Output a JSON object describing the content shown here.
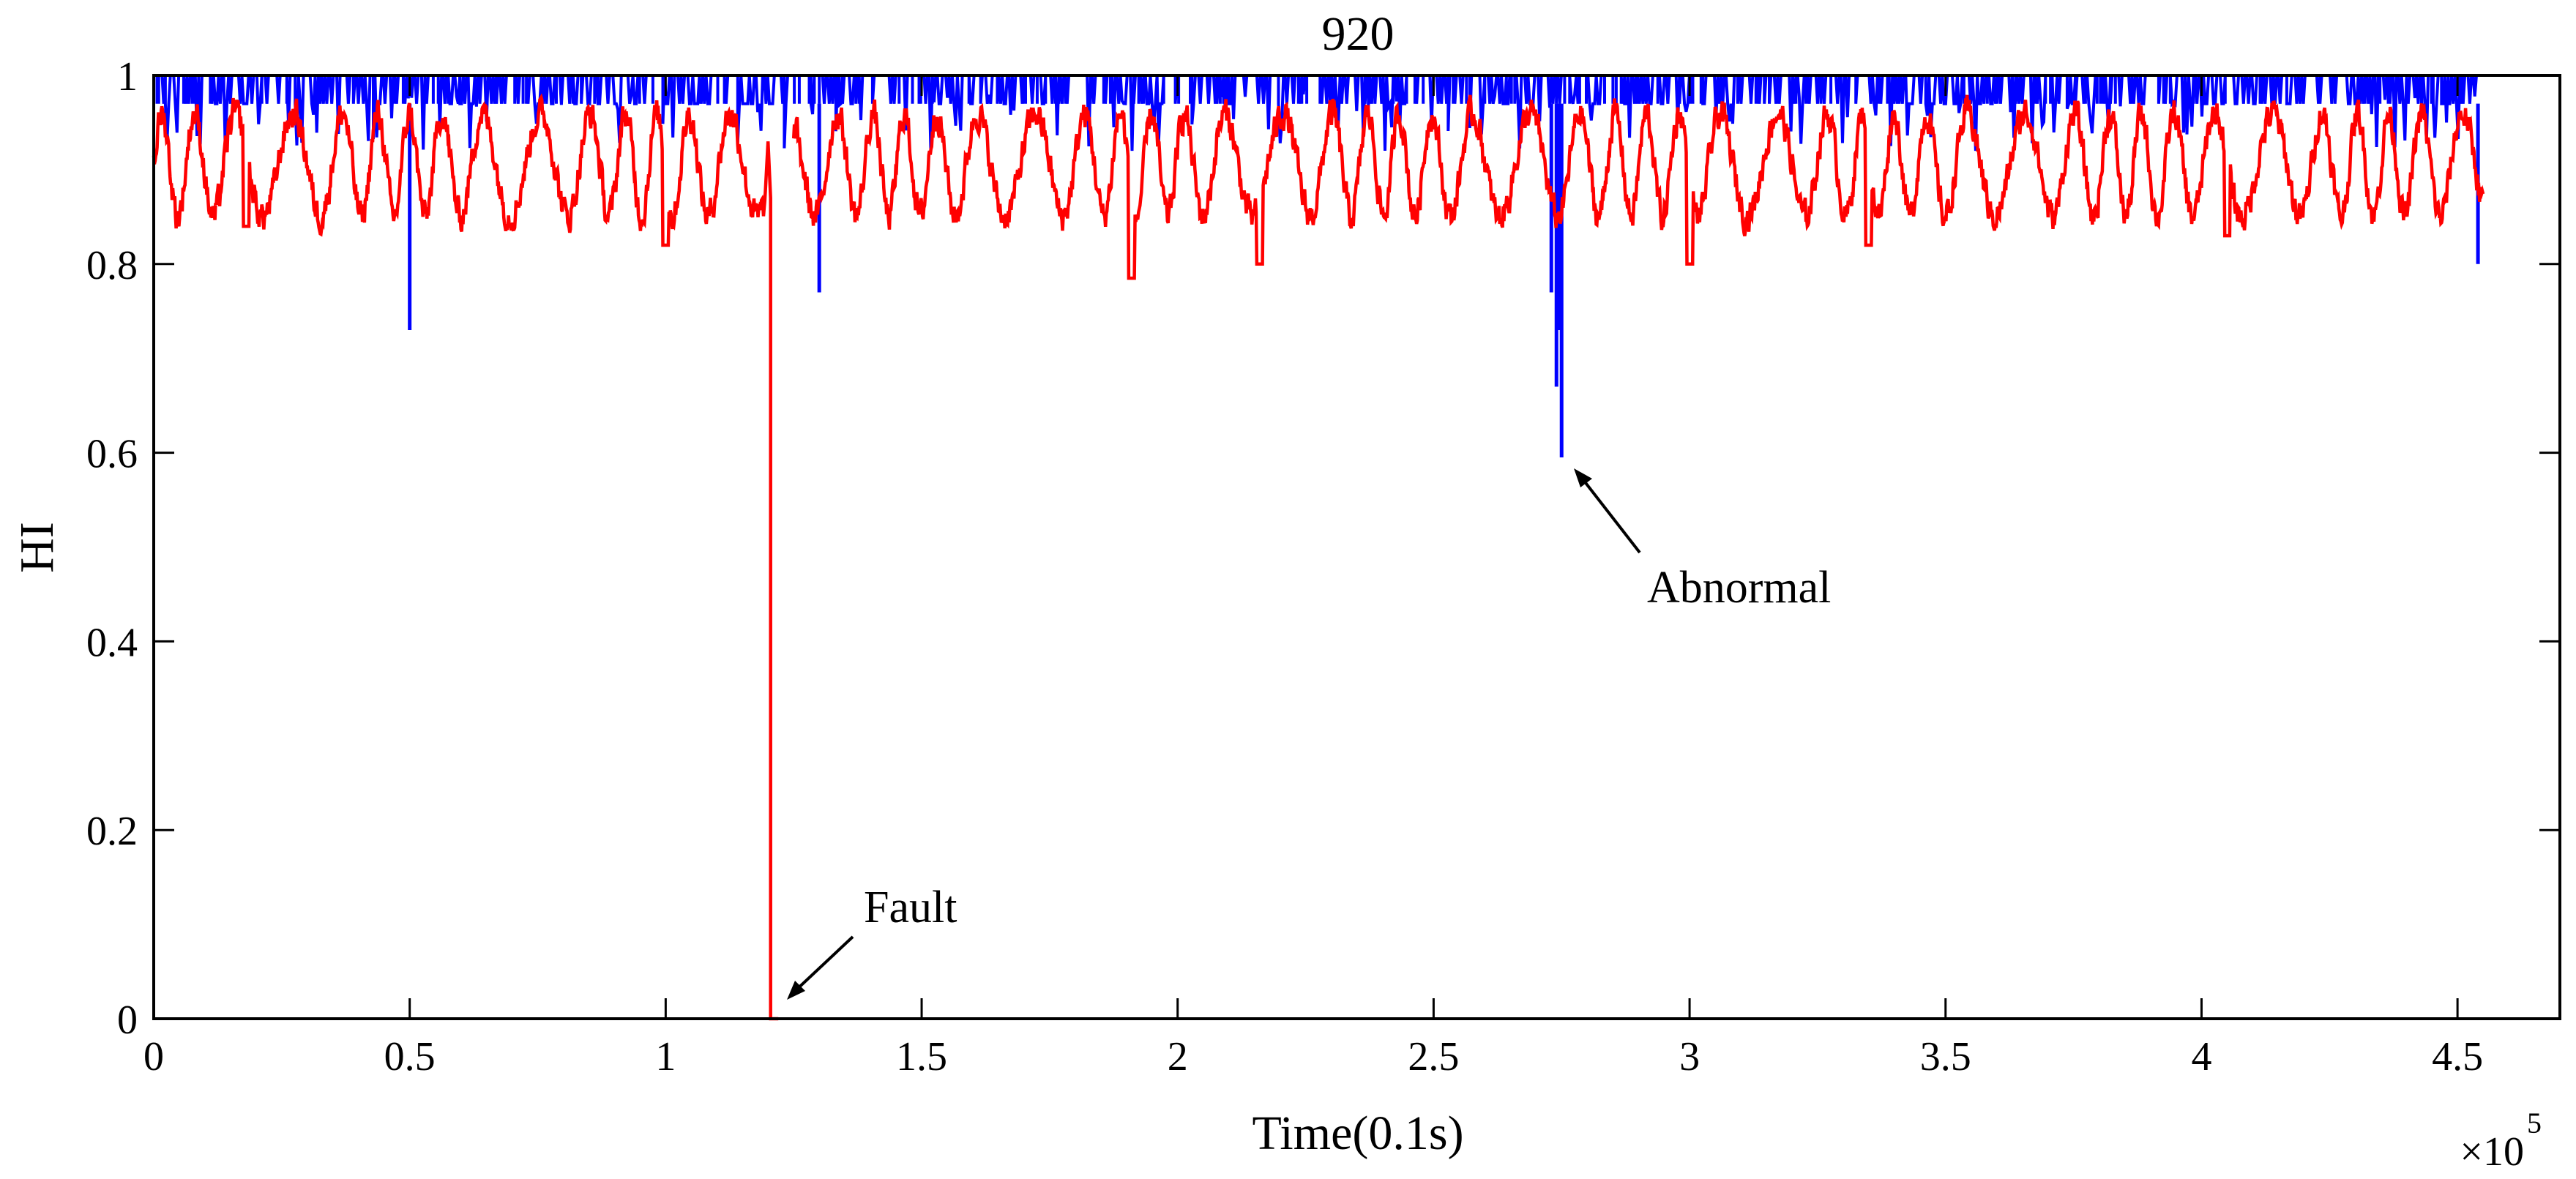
{
  "chart_data": {
    "type": "line",
    "title": "920",
    "xlabel": "Time(0.1s)",
    "ylabel": "HI",
    "x_multiplier_label": "×10",
    "x_multiplier_exponent": "5",
    "xlim": [
      0,
      4.7
    ],
    "ylim": [
      0,
      1
    ],
    "x_ticks": [
      0,
      0.5,
      1,
      1.5,
      2,
      2.5,
      3,
      3.5,
      4,
      4.5
    ],
    "x_tick_labels": [
      "0",
      "0.5",
      "1",
      "1.5",
      "2",
      "2.5",
      "3",
      "3.5",
      "4",
      "4.5"
    ],
    "y_ticks": [
      0,
      0.2,
      0.4,
      0.6,
      0.8,
      1
    ],
    "y_tick_labels": [
      "0",
      "0.2",
      "0.4",
      "0.6",
      "0.8",
      "1"
    ],
    "grid": false,
    "series": [
      {
        "name": "blue-series",
        "color": "#0000ff",
        "x_range": [
          0,
          4.55
        ],
        "baseline": 0.97,
        "spikes": [
          {
            "x": 0.5,
            "y": 0.73
          },
          {
            "x": 1.3,
            "y": 0.77
          },
          {
            "x": 2.73,
            "y": 0.77
          },
          {
            "x": 2.74,
            "y": 0.67
          },
          {
            "x": 2.745,
            "y": 0.73
          },
          {
            "x": 2.75,
            "y": 0.595
          },
          {
            "x": 4.54,
            "y": 0.8
          }
        ]
      },
      {
        "name": "red-series",
        "color": "#ff0000",
        "x_range": [
          0,
          4.55
        ],
        "typical_range": [
          0.82,
          0.98
        ],
        "fault_drop_x": 1.2,
        "fault_zero_until_x": 1.22,
        "lows": [
          {
            "x": 0.18,
            "y": 0.84
          },
          {
            "x": 1.0,
            "y": 0.82
          },
          {
            "x": 1.91,
            "y": 0.785
          },
          {
            "x": 2.16,
            "y": 0.8
          },
          {
            "x": 3.0,
            "y": 0.8
          },
          {
            "x": 3.35,
            "y": 0.82
          },
          {
            "x": 4.05,
            "y": 0.83
          }
        ]
      }
    ],
    "annotations": [
      {
        "text": "Fault",
        "arrow_to": [
          1.22,
          0.0
        ]
      },
      {
        "text": "Abnormal",
        "arrow_to": [
          2.76,
          0.595
        ]
      }
    ]
  }
}
